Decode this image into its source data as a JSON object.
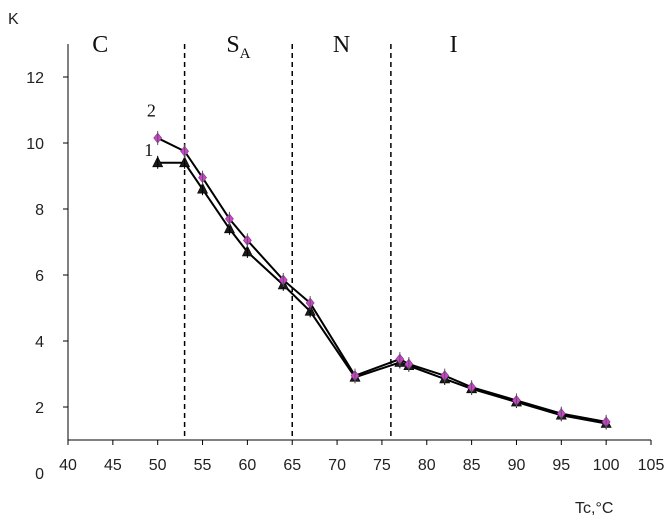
{
  "chart_data": {
    "type": "line",
    "ylabel": "K",
    "xlabel": "Tc,°C",
    "xlim": [
      40,
      105
    ],
    "ylim": [
      0,
      13
    ],
    "x_ticks": [
      "40",
      "45",
      "50",
      "55",
      "60",
      "65",
      "70",
      "75",
      "80",
      "85",
      "90",
      "95",
      "100",
      "105"
    ],
    "y_ticks": [
      "0",
      "2",
      "4",
      "6",
      "8",
      "10",
      "12"
    ],
    "grid": false,
    "legend": "none",
    "phase_boundaries": [
      53,
      65,
      76
    ],
    "phase_labels": [
      {
        "text": "C",
        "sub": ""
      },
      {
        "text": "S",
        "sub": "A"
      },
      {
        "text": "N",
        "sub": ""
      },
      {
        "text": "I",
        "sub": ""
      }
    ],
    "series": [
      {
        "name": "1",
        "marker": "triangle",
        "color": "#000000",
        "marker_color": "#1a1a1a",
        "x": [
          50,
          53,
          55,
          58,
          60,
          64,
          67,
          72,
          77,
          78,
          82,
          85,
          90,
          95,
          100
        ],
        "y": [
          9.4,
          9.4,
          8.6,
          7.4,
          6.7,
          5.7,
          4.9,
          2.9,
          3.35,
          3.25,
          2.85,
          2.55,
          2.15,
          1.75,
          1.5
        ]
      },
      {
        "name": "2",
        "marker": "diamond",
        "color": "#000000",
        "marker_color": "#cc44cc",
        "x": [
          50,
          53,
          55,
          58,
          60,
          64,
          67,
          72,
          77,
          78,
          82,
          85,
          90,
          95,
          100
        ],
        "y": [
          10.15,
          9.75,
          8.95,
          7.7,
          7.05,
          5.85,
          5.15,
          2.95,
          3.45,
          3.3,
          2.95,
          2.6,
          2.2,
          1.8,
          1.55
        ]
      }
    ]
  }
}
